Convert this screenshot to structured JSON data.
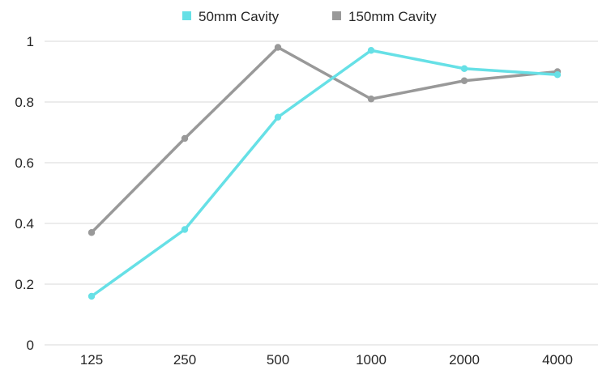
{
  "chart_data": {
    "type": "line",
    "categories": [
      "125",
      "250",
      "500",
      "1000",
      "2000",
      "4000"
    ],
    "series": [
      {
        "name": "50mm Cavity",
        "values": [
          0.16,
          0.38,
          0.75,
          0.97,
          0.91,
          0.89
        ],
        "color": "#66E0E6"
      },
      {
        "name": "150mm Cavity",
        "values": [
          0.37,
          0.68,
          0.98,
          0.81,
          0.87,
          0.9
        ],
        "color": "#999999"
      }
    ],
    "y_ticks": [
      "0",
      "0.2",
      "0.4",
      "0.6",
      "0.8",
      "1"
    ],
    "ylim": [
      0,
      1
    ],
    "title": "",
    "xlabel": "",
    "ylabel": "",
    "grid": "horizontal",
    "legend_position": "top-center",
    "gridline_color": "#D9D9D9"
  }
}
